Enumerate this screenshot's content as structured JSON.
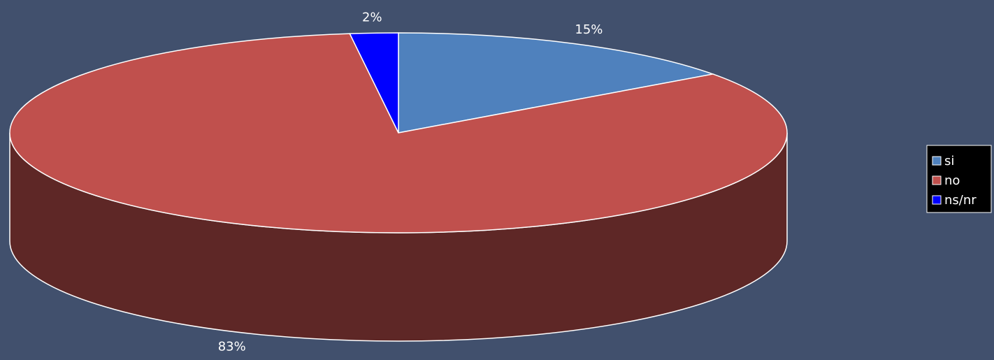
{
  "chart_data": {
    "type": "pie",
    "categories": [
      "si",
      "no",
      "ns/nr"
    ],
    "values": [
      15,
      83,
      2
    ],
    "value_labels": [
      "15%",
      "83%",
      "2%"
    ],
    "colors": [
      "#4f81bd",
      "#c0504d",
      "#0000ff"
    ],
    "legend": "right"
  }
}
